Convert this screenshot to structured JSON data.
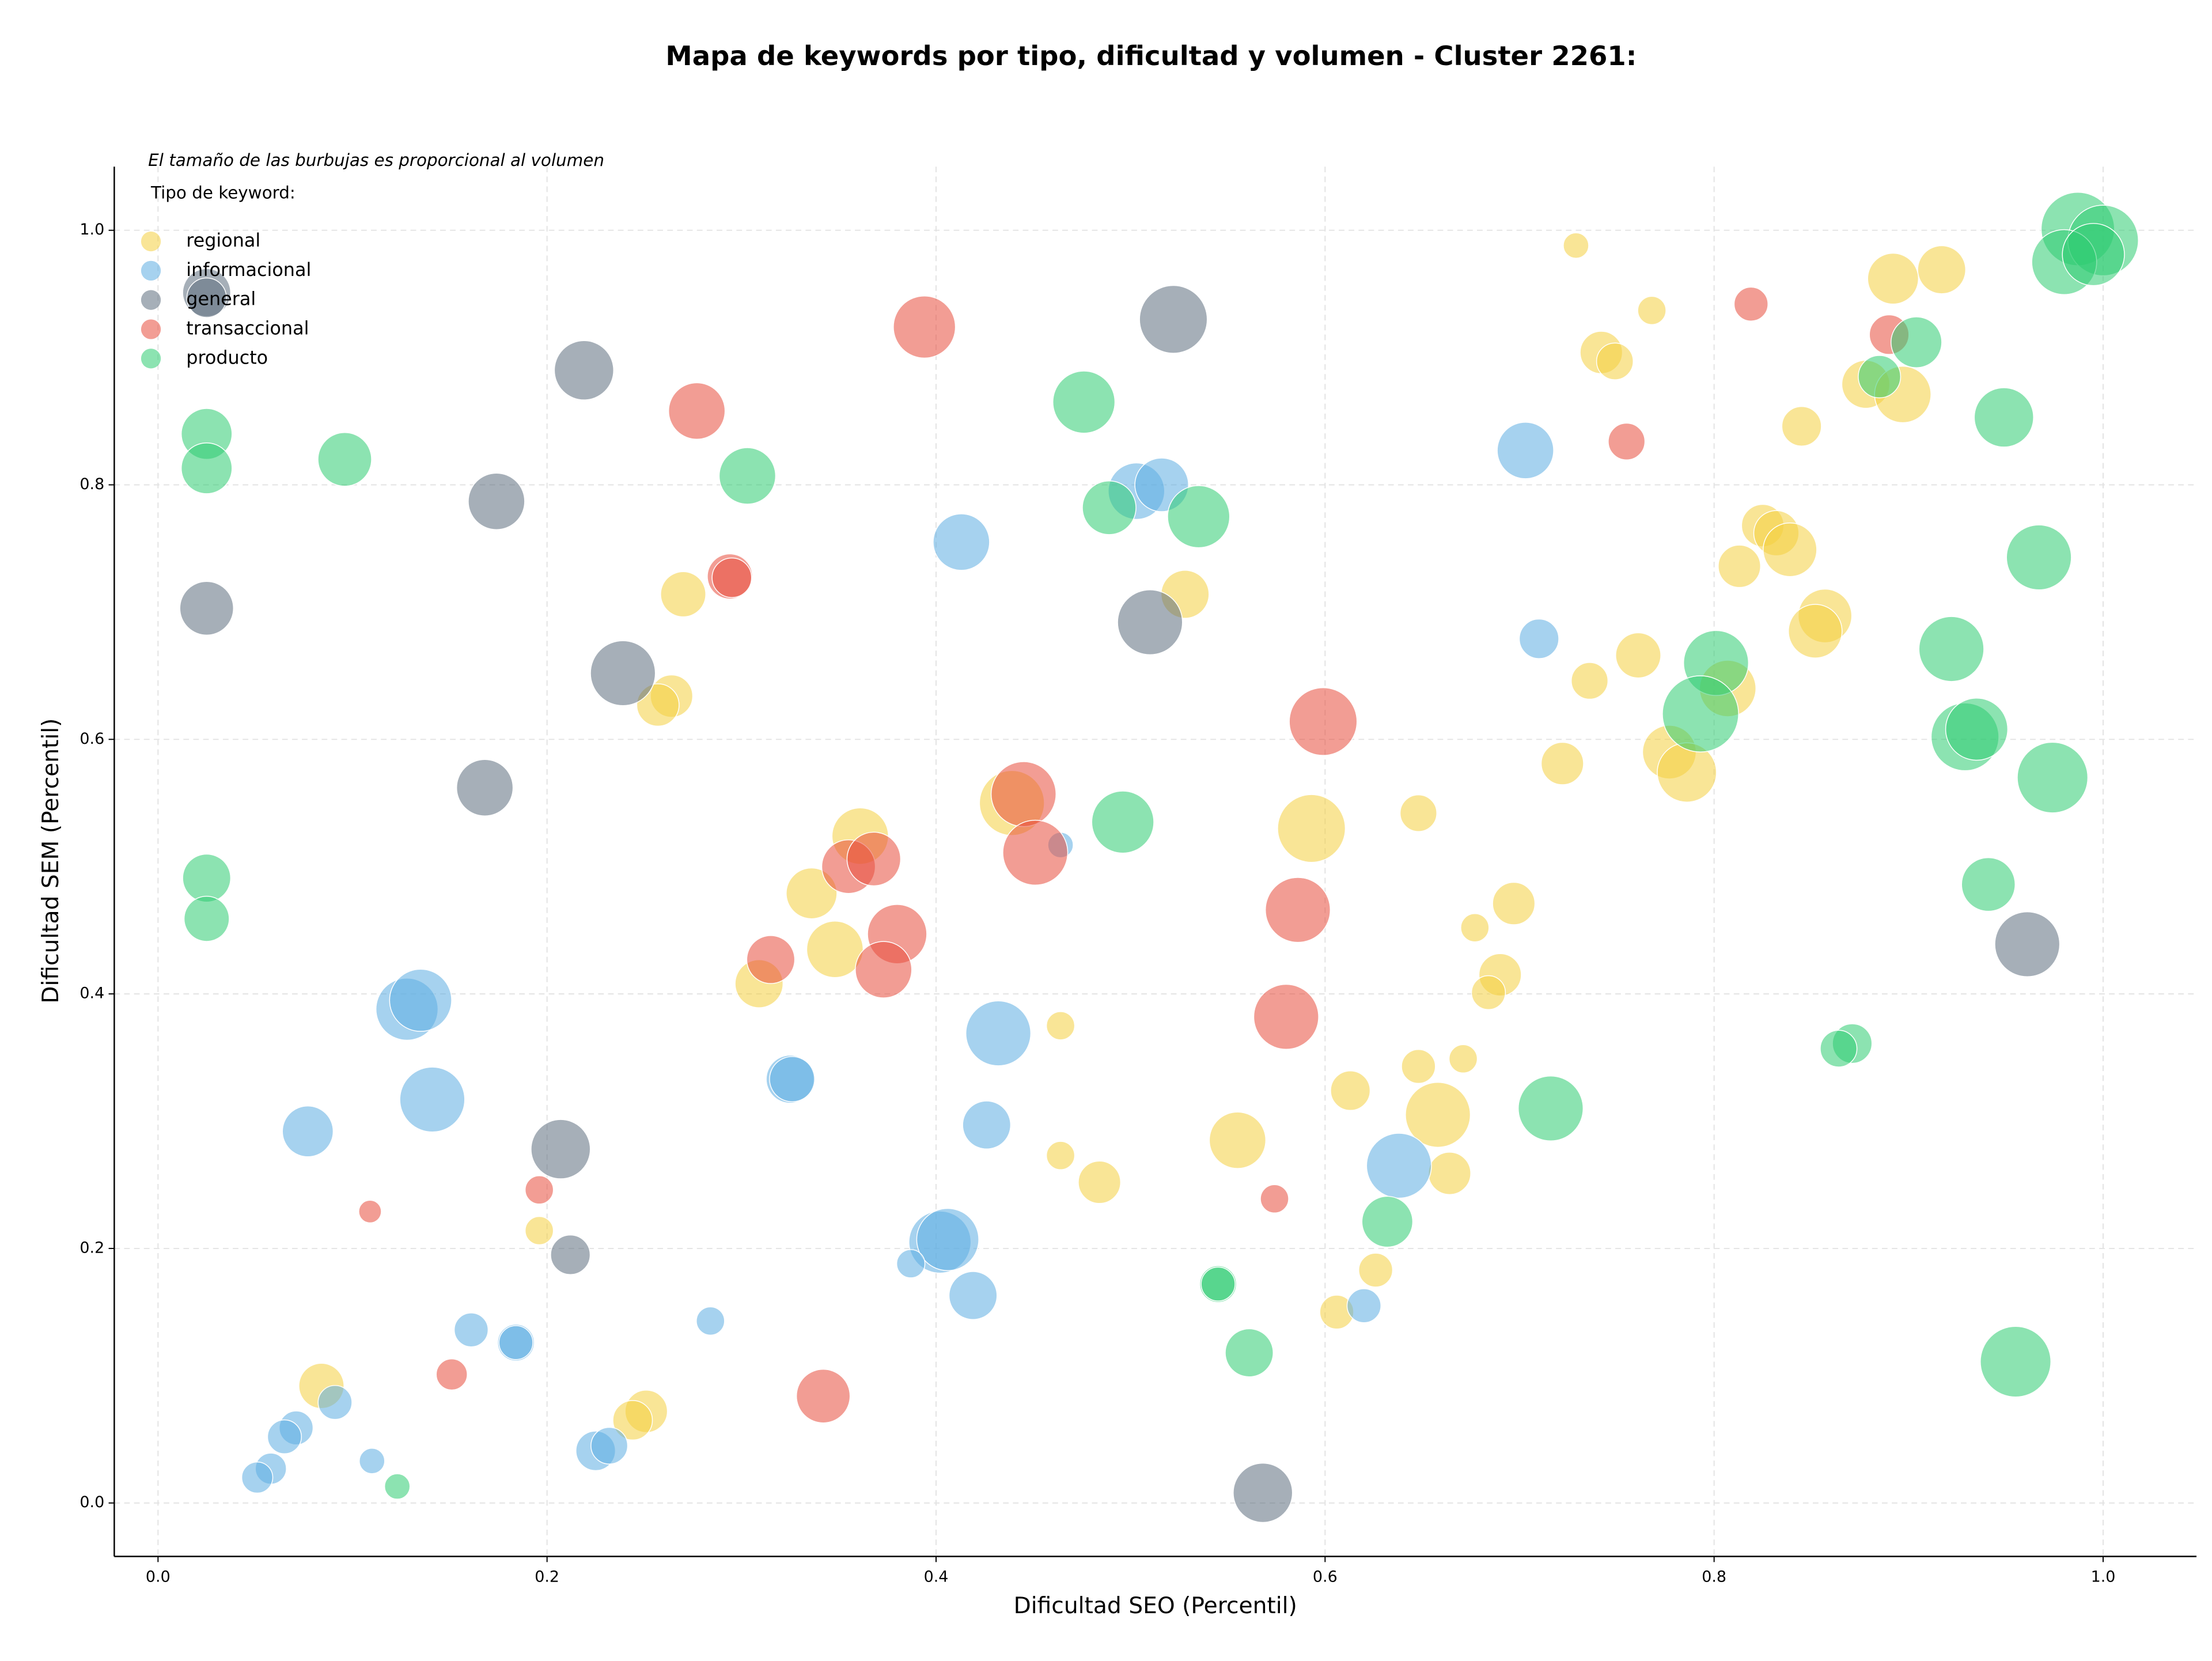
{
  "chart_data": {
    "type": "scatter",
    "title": "Mapa de keywords por tipo, dificultad y volumen - Cluster 2261:",
    "note": "El tamaño de las burbujas es proporcional al volumen",
    "legend_title": "Tipo de keyword:",
    "legend_position": "upper left",
    "xlabel": "Dificultad SEO (Percentil)",
    "ylabel": "Dificultad SEM (Percentil)",
    "xlim": [
      -0.0225,
      1.048
    ],
    "ylim": [
      -0.042,
      1.05
    ],
    "xticks": [
      {
        "value": 0,
        "label": "0.0"
      },
      0.2,
      0.4,
      0.6,
      0.8,
      {
        "value": 1,
        "label": "1.0"
      }
    ],
    "yticks": [
      {
        "value": 0,
        "label": "0.0"
      },
      0.2,
      0.4,
      0.6,
      0.8,
      {
        "value": 1,
        "label": "1.0"
      }
    ],
    "grid": true,
    "series": [
      {
        "name": "regional",
        "color": "#f4d03f",
        "x": [
          0.729,
          0.768,
          0.742,
          0.749,
          0.892,
          0.917,
          0.878,
          0.897,
          0.845,
          0.825,
          0.832,
          0.839,
          0.813,
          0.857,
          0.852,
          0.807,
          0.761,
          0.736,
          0.722,
          0.777,
          0.786,
          0.648,
          0.593,
          0.697,
          0.677,
          0.69,
          0.684,
          0.671,
          0.648,
          0.613,
          0.658,
          0.664,
          0.555,
          0.626,
          0.606,
          0.464,
          0.464,
          0.484,
          0.528,
          0.439,
          0.361,
          0.336,
          0.348,
          0.309,
          0.27,
          0.264,
          0.257,
          0.196,
          0.084,
          0.251,
          0.244
        ],
        "values": [
          0.988,
          0.937,
          0.904,
          0.897,
          0.962,
          0.969,
          0.879,
          0.871,
          0.846,
          0.768,
          0.762,
          0.749,
          0.736,
          0.697,
          0.685,
          0.64,
          0.666,
          0.646,
          0.581,
          0.59,
          0.574,
          0.542,
          0.53,
          0.471,
          0.452,
          0.415,
          0.401,
          0.349,
          0.343,
          0.324,
          0.305,
          0.259,
          0.285,
          0.183,
          0.15,
          0.375,
          0.273,
          0.252,
          0.714,
          0.55,
          0.524,
          0.479,
          0.435,
          0.408,
          0.714,
          0.634,
          0.627,
          0.214,
          0.092,
          0.072,
          0.065
        ],
        "sizes": [
          81,
          100,
          225,
          169,
          324,
          289,
          289,
          400,
          196,
          225,
          256,
          361,
          225,
          361,
          361,
          400,
          256,
          169,
          225,
          361,
          441,
          169,
          576,
          225,
          100,
          225,
          144,
          100,
          144,
          196,
          529,
          225,
          400,
          144,
          144,
          100,
          100,
          225,
          289,
          529,
          400,
          324,
          400,
          289,
          256,
          225,
          225,
          100,
          256,
          225,
          196
        ]
      },
      {
        "name": "informacional",
        "color": "#5dade2",
        "x": [
          0.703,
          0.71,
          0.503,
          0.516,
          0.413,
          0.464,
          0.432,
          0.426,
          0.402,
          0.406,
          0.419,
          0.387,
          0.325,
          0.326,
          0.284,
          0.128,
          0.135,
          0.141,
          0.077,
          0.161,
          0.184,
          0.184,
          0.225,
          0.232,
          0.091,
          0.071,
          0.065,
          0.11,
          0.058,
          0.051,
          0.638,
          0.62
        ],
        "values": [
          0.827,
          0.679,
          0.795,
          0.8,
          0.755,
          0.517,
          0.369,
          0.297,
          0.205,
          0.207,
          0.163,
          0.188,
          0.333,
          0.333,
          0.143,
          0.388,
          0.395,
          0.317,
          0.292,
          0.136,
          0.126,
          0.126,
          0.041,
          0.045,
          0.079,
          0.059,
          0.052,
          0.033,
          0.027,
          0.02,
          0.265,
          0.155
        ],
        "sizes": [
          400,
          196,
          400,
          361,
          400,
          81,
          529,
          289,
          484,
          484,
          289,
          100,
          289,
          256,
          100,
          484,
          484,
          529,
          324,
          144,
          169,
          144,
          196,
          169,
          144,
          144,
          144,
          81,
          121,
          121,
          529,
          144
        ]
      },
      {
        "name": "general",
        "color": "#5d6d7e",
        "x": [
          0.025,
          0.025,
          0.219,
          0.174,
          0.025,
          0.239,
          0.168,
          0.522,
          0.51,
          0.961,
          0.207,
          0.212,
          0.568
        ],
        "values": [
          0.951,
          0.947,
          0.89,
          0.787,
          0.703,
          0.652,
          0.562,
          0.93,
          0.692,
          0.439,
          0.278,
          0.195,
          0.008
        ],
        "sizes": [
          289,
          196,
          441,
          400,
          361,
          529,
          400,
          576,
          529,
          529,
          441,
          196,
          441
        ]
      },
      {
        "name": "transaccional",
        "color": "#e74c3c",
        "x": [
          0.394,
          0.277,
          0.294,
          0.295,
          0.819,
          0.89,
          0.755,
          0.599,
          0.445,
          0.451,
          0.355,
          0.368,
          0.38,
          0.373,
          0.315,
          0.586,
          0.58,
          0.574,
          0.196,
          0.109,
          0.151,
          0.342
        ],
        "values": [
          0.924,
          0.858,
          0.728,
          0.727,
          0.942,
          0.918,
          0.834,
          0.614,
          0.557,
          0.511,
          0.5,
          0.506,
          0.447,
          0.419,
          0.427,
          0.466,
          0.382,
          0.239,
          0.246,
          0.229,
          0.101,
          0.084
        ],
        "sizes": [
          484,
          400,
          256,
          196,
          144,
          196,
          169,
          576,
          529,
          529,
          361,
          361,
          441,
          400,
          289,
          529,
          529,
          100,
          100,
          64,
          121,
          361
        ]
      },
      {
        "name": "producto",
        "color": "#2ecc71",
        "x": [
          0.987,
          1.0,
          0.98,
          0.995,
          0.904,
          0.885,
          0.949,
          0.967,
          0.922,
          0.801,
          0.793,
          0.929,
          0.935,
          0.974,
          0.941,
          0.871,
          0.864,
          0.716,
          0.632,
          0.955,
          0.545,
          0.545,
          0.561,
          0.476,
          0.303,
          0.489,
          0.535,
          0.496,
          0.096,
          0.025,
          0.025,
          0.025,
          0.025,
          0.123
        ],
        "values": [
          1.001,
          0.992,
          0.975,
          0.981,
          0.912,
          0.885,
          0.853,
          0.743,
          0.671,
          0.66,
          0.62,
          0.602,
          0.608,
          0.57,
          0.486,
          0.361,
          0.357,
          0.31,
          0.221,
          0.111,
          0.172,
          0.172,
          0.118,
          0.865,
          0.807,
          0.782,
          0.775,
          0.535,
          0.82,
          0.84,
          0.813,
          0.491,
          0.459,
          0.013
        ],
        "sizes": [
          676,
          625,
          529,
          484,
          324,
          225,
          441,
          529,
          529,
          529,
          729,
          576,
          484,
          625,
          361,
          196,
          169,
          529,
          324,
          625,
          169,
          144,
          289,
          484,
          400,
          361,
          484,
          484,
          361,
          324,
          324,
          289,
          256,
          81
        ]
      }
    ]
  }
}
